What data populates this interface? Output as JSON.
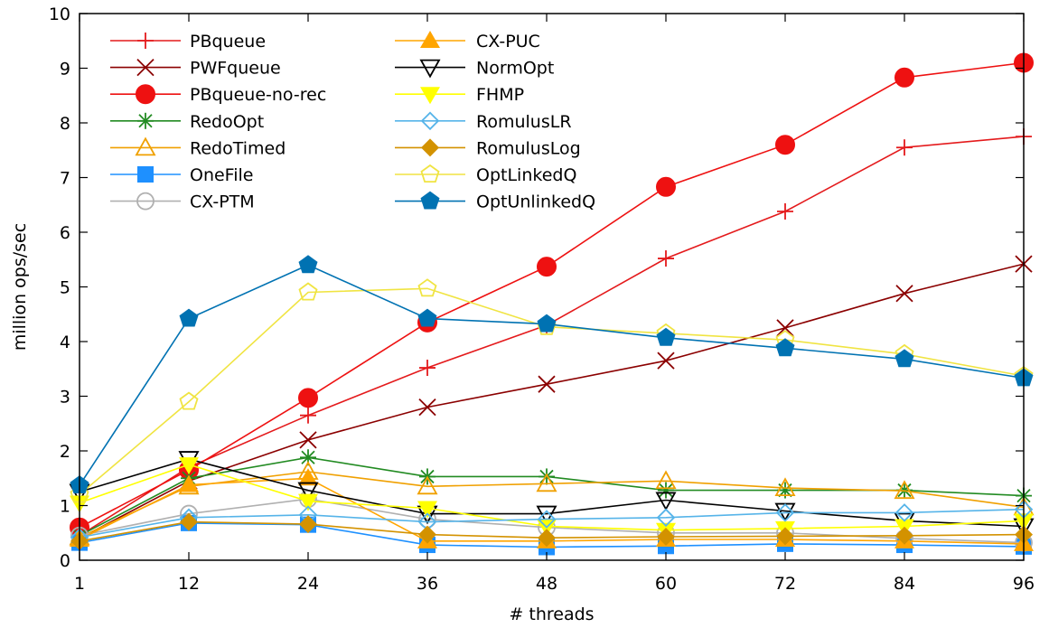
{
  "chart_data": {
    "type": "line",
    "title": "",
    "xlabel": "# threads",
    "ylabel": "million ops/sec",
    "x": [
      1,
      12,
      24,
      36,
      48,
      60,
      72,
      84,
      96
    ],
    "x_ticks": [
      "1",
      "12",
      "24",
      "36",
      "48",
      "60",
      "72",
      "84",
      "96"
    ],
    "y_ticks": [
      "0",
      "1",
      "2",
      "3",
      "4",
      "5",
      "6",
      "7",
      "8",
      "9",
      "10"
    ],
    "xlim": [
      1,
      96
    ],
    "ylim": [
      0,
      10
    ],
    "grid": false,
    "legend_position": "top-left",
    "series": [
      {
        "name": "PBqueue",
        "color": "#e41a1c",
        "marker": "plus",
        "values": [
          0.45,
          1.7,
          2.65,
          3.52,
          4.3,
          5.52,
          6.38,
          7.55,
          7.75
        ]
      },
      {
        "name": "PWFqueue",
        "color": "#8b0000",
        "marker": "cross",
        "values": [
          0.4,
          1.45,
          2.2,
          2.8,
          3.22,
          3.65,
          4.25,
          4.88,
          5.42
        ]
      },
      {
        "name": "PBqueue-no-rec",
        "color": "#ee1111",
        "marker": "circle-filled",
        "values": [
          0.6,
          1.65,
          2.97,
          4.35,
          5.37,
          6.83,
          7.6,
          8.83,
          9.1
        ]
      },
      {
        "name": "RedoOpt",
        "color": "#228b22",
        "marker": "star",
        "values": [
          0.45,
          1.5,
          1.88,
          1.53,
          1.53,
          1.28,
          1.28,
          1.28,
          1.18
        ]
      },
      {
        "name": "RedoTimed",
        "color": "#f0a000",
        "marker": "triangle-open",
        "values": [
          0.42,
          1.35,
          1.62,
          1.35,
          1.4,
          1.45,
          1.32,
          1.27,
          0.97
        ]
      },
      {
        "name": "OneFile",
        "color": "#1e90ff",
        "marker": "square-filled",
        "values": [
          0.32,
          0.68,
          0.65,
          0.28,
          0.24,
          0.26,
          0.3,
          0.28,
          0.25
        ]
      },
      {
        "name": "CX-PTM",
        "color": "#b0b0b0",
        "marker": "circle-open",
        "values": [
          0.45,
          0.85,
          1.12,
          0.75,
          0.6,
          0.5,
          0.5,
          0.4,
          0.32
        ]
      },
      {
        "name": "CX-PUC",
        "color": "#ffa500",
        "marker": "triangle-filled",
        "values": [
          0.38,
          1.38,
          1.5,
          0.35,
          0.35,
          0.38,
          0.38,
          0.35,
          0.3
        ]
      },
      {
        "name": "NormOpt",
        "color": "#000000",
        "marker": "triangle-down-open",
        "values": [
          1.25,
          1.85,
          1.28,
          0.85,
          0.85,
          1.1,
          0.9,
          0.72,
          0.62
        ]
      },
      {
        "name": "FHMP",
        "color": "#ffff00",
        "marker": "triangle-down-filled",
        "values": [
          1.05,
          1.75,
          1.08,
          0.95,
          0.62,
          0.55,
          0.58,
          0.62,
          0.72
        ]
      },
      {
        "name": "RomulusLR",
        "color": "#56b4e9",
        "marker": "diamond-open",
        "values": [
          0.42,
          0.78,
          0.83,
          0.7,
          0.75,
          0.78,
          0.87,
          0.87,
          0.93
        ]
      },
      {
        "name": "RomulusLog",
        "color": "#d39200",
        "marker": "diamond-filled",
        "values": [
          0.35,
          0.7,
          0.66,
          0.47,
          0.41,
          0.43,
          0.44,
          0.45,
          0.47
        ]
      },
      {
        "name": "OptLinkedQ",
        "color": "#f0e442",
        "marker": "pentagon-open",
        "values": [
          1.2,
          2.9,
          4.9,
          4.97,
          4.27,
          4.15,
          4.03,
          3.77,
          3.37
        ]
      },
      {
        "name": "OptUnlinkedQ",
        "color": "#0072b2",
        "marker": "pentagon-filled",
        "values": [
          1.37,
          4.42,
          5.4,
          4.42,
          4.32,
          4.07,
          3.88,
          3.68,
          3.33
        ]
      }
    ]
  }
}
